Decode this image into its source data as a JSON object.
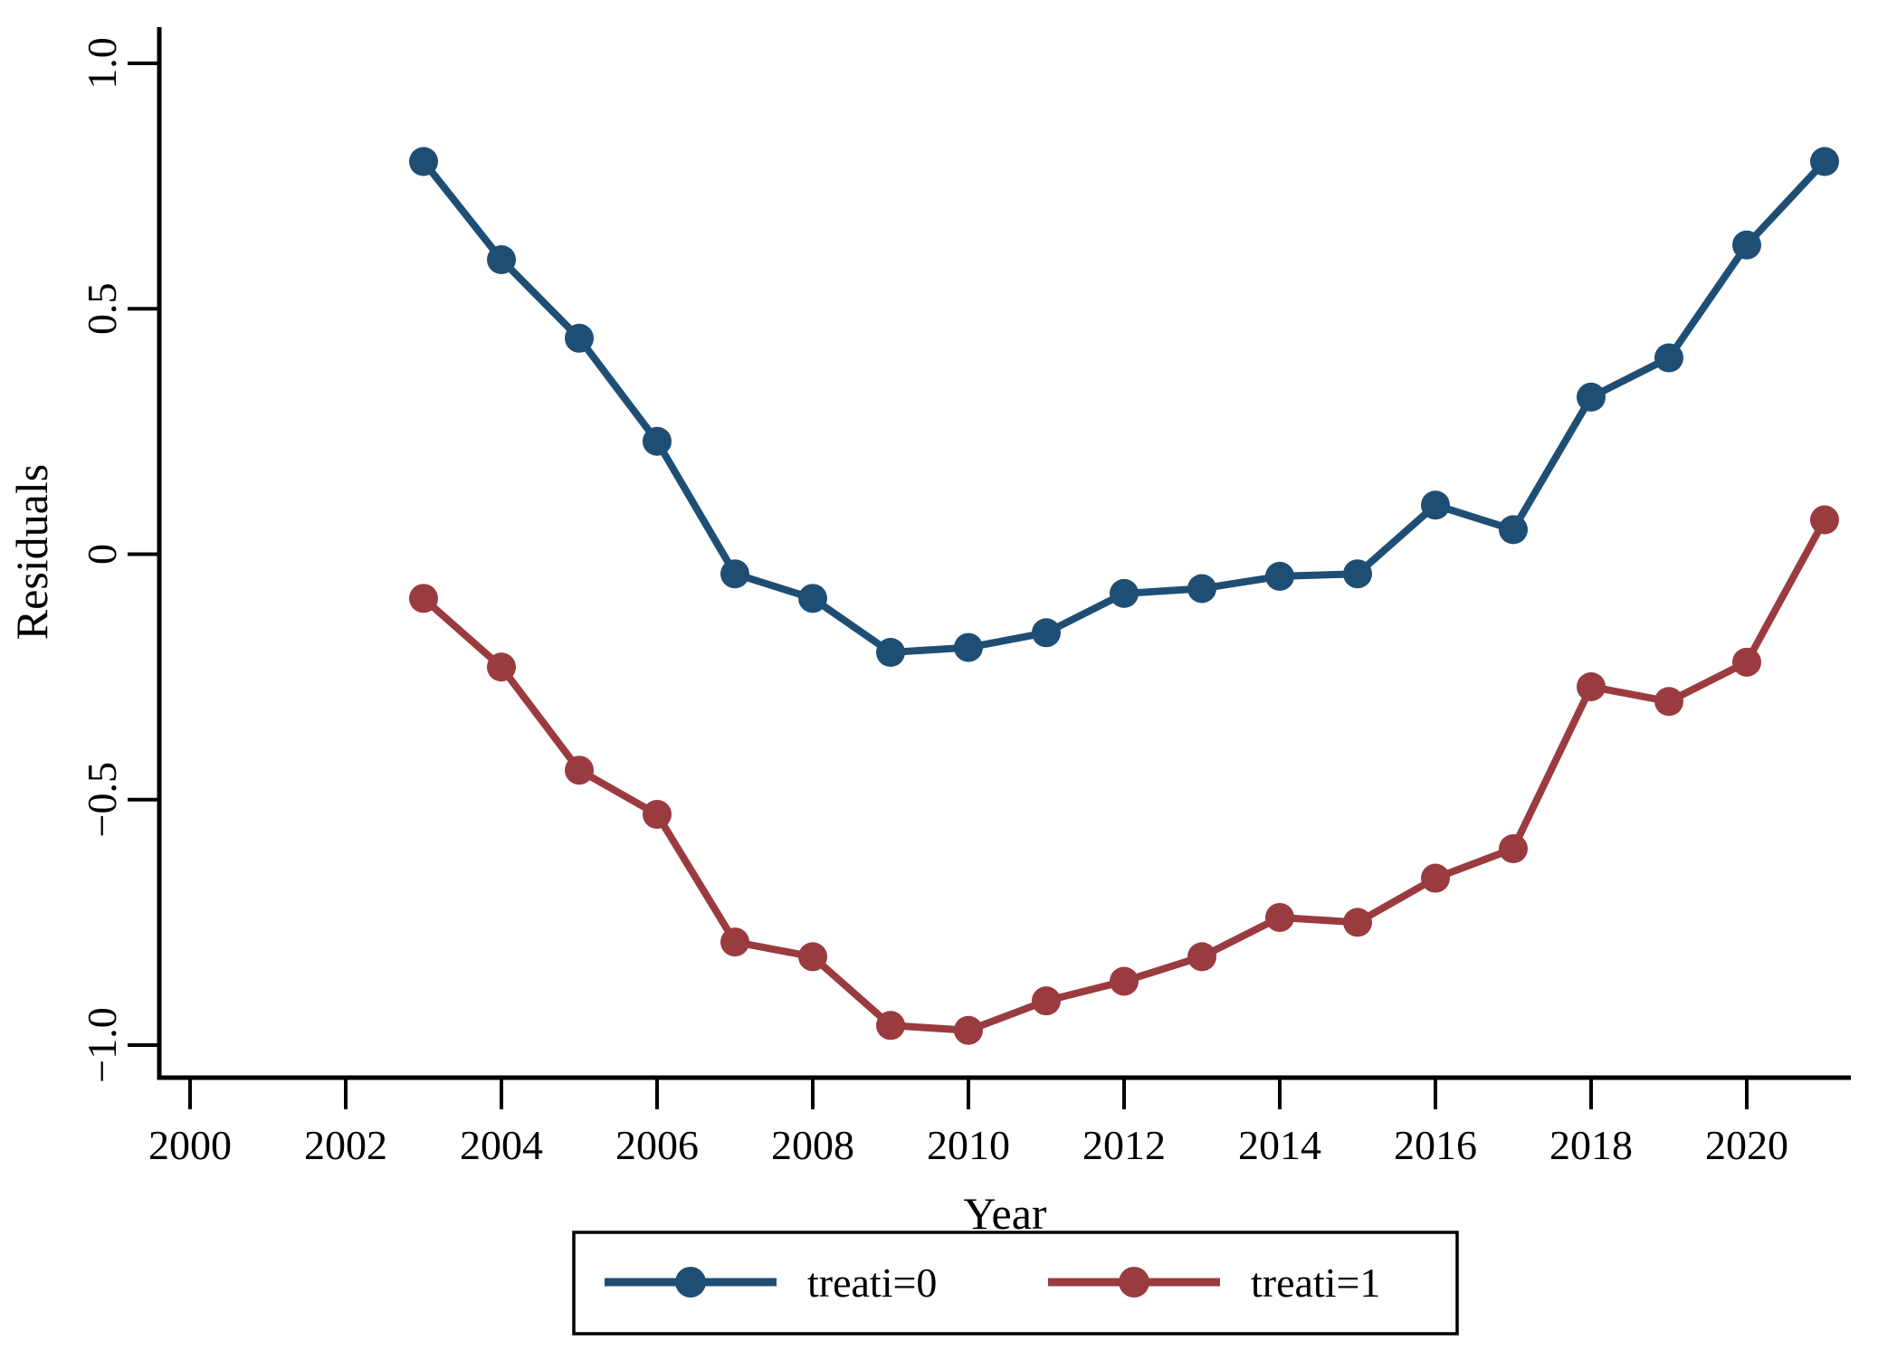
{
  "figure": {
    "background": "#ffffff",
    "axis_color": "#000000",
    "text_color": "#000000"
  },
  "chart_data": {
    "type": "line",
    "title": "",
    "xlabel": "Year",
    "ylabel": "Residuals",
    "grid": false,
    "legend_position": "bottom-outside-boxed",
    "xlim": [
      1999.6,
      2021.35
    ],
    "ylim": [
      -1.07,
      1.07
    ],
    "x_ticks": [
      2000,
      2002,
      2004,
      2006,
      2008,
      2010,
      2012,
      2014,
      2016,
      2018,
      2020
    ],
    "x_tick_labels": [
      "2000",
      "2002",
      "2004",
      "2006",
      "2008",
      "2010",
      "2012",
      "2014",
      "2016",
      "2018",
      "2020"
    ],
    "y_ticks": [
      1.0,
      0.5,
      0,
      -0.5,
      -1.0
    ],
    "y_tick_labels": [
      "1.0",
      "0.5",
      "0",
      "−0.5",
      "−1.0"
    ],
    "x": [
      2003,
      2004,
      2005,
      2006,
      2007,
      2008,
      2009,
      2010,
      2011,
      2012,
      2013,
      2014,
      2015,
      2016,
      2017,
      2018,
      2019,
      2020,
      2021
    ],
    "series": [
      {
        "name": "treati=0",
        "color": "#1f4e74",
        "marker": "circle",
        "values": [
          0.8,
          0.6,
          0.44,
          0.23,
          -0.04,
          -0.09,
          -0.2,
          -0.19,
          -0.16,
          -0.08,
          -0.07,
          -0.045,
          -0.04,
          0.1,
          0.05,
          0.32,
          0.4,
          0.63,
          0.8
        ]
      },
      {
        "name": "treati=1",
        "color": "#9a3b3f",
        "marker": "circle",
        "values": [
          -0.09,
          -0.23,
          -0.44,
          -0.53,
          -0.79,
          -0.82,
          -0.96,
          -0.97,
          -0.91,
          -0.87,
          -0.82,
          -0.74,
          -0.75,
          -0.66,
          -0.6,
          -0.27,
          -0.3,
          -0.22,
          0.07
        ]
      }
    ]
  }
}
